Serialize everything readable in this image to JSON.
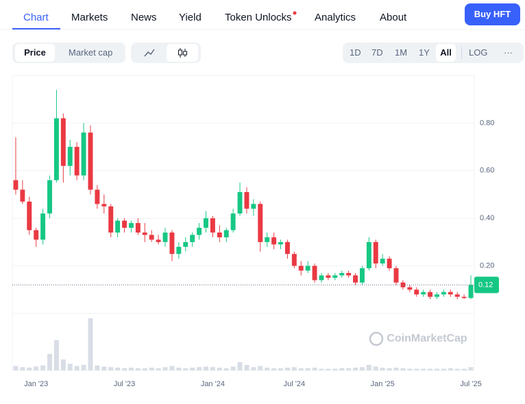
{
  "nav": {
    "tabs": [
      "Chart",
      "Markets",
      "News",
      "Yield",
      "Token Unlocks",
      "Analytics",
      "About"
    ],
    "button": "Buy HFT"
  },
  "controls": {
    "metric": [
      "Price",
      "Market cap"
    ],
    "ranges": [
      "1D",
      "7D",
      "1M",
      "1Y",
      "All",
      "LOG",
      "···"
    ]
  },
  "chart_data": {
    "type": "candlestick",
    "watermark": "CoinMarketCap",
    "categories": [
      null,
      null,
      null,
      "Jan '23",
      null,
      null,
      null,
      null,
      null,
      null,
      null,
      null,
      null,
      null,
      null,
      null,
      "Jul '23",
      null,
      null,
      null,
      null,
      null,
      null,
      null,
      null,
      null,
      null,
      null,
      null,
      "Jan '24",
      null,
      null,
      null,
      null,
      null,
      null,
      null,
      null,
      null,
      null,
      null,
      "Jul '24",
      null,
      null,
      null,
      null,
      null,
      null,
      null,
      null,
      null,
      null,
      null,
      null,
      "Jan '25",
      null,
      null,
      null,
      null,
      null,
      null,
      null,
      null,
      null,
      null,
      null,
      null,
      "Jul '25"
    ],
    "open": [
      0.56,
      0.52,
      0.47,
      0.35,
      0.31,
      0.42,
      0.56,
      0.82,
      0.62,
      0.7,
      0.58,
      0.76,
      0.52,
      0.46,
      0.45,
      0.34,
      0.39,
      0.36,
      0.38,
      0.34,
      0.33,
      0.31,
      0.3,
      0.34,
      0.25,
      0.28,
      0.3,
      0.33,
      0.36,
      0.4,
      0.34,
      0.32,
      0.35,
      0.42,
      0.51,
      0.44,
      0.46,
      0.3,
      0.32,
      0.29,
      0.3,
      0.25,
      0.2,
      0.18,
      0.2,
      0.14,
      0.16,
      0.15,
      0.16,
      0.17,
      0.16,
      0.13,
      0.19,
      0.3,
      0.21,
      0.23,
      0.19,
      0.13,
      0.11,
      0.1,
      0.08,
      0.09,
      0.07,
      0.08,
      0.09,
      0.08,
      0.07,
      0.065
    ],
    "high": [
      0.74,
      0.56,
      0.49,
      0.36,
      0.44,
      0.58,
      0.94,
      0.84,
      0.73,
      0.72,
      0.8,
      0.79,
      0.54,
      0.5,
      0.46,
      0.4,
      0.4,
      0.39,
      0.4,
      0.38,
      0.35,
      0.33,
      0.36,
      0.35,
      0.3,
      0.32,
      0.34,
      0.38,
      0.43,
      0.41,
      0.37,
      0.36,
      0.44,
      0.55,
      0.53,
      0.48,
      0.47,
      0.34,
      0.34,
      0.31,
      0.31,
      0.26,
      0.22,
      0.22,
      0.21,
      0.17,
      0.17,
      0.17,
      0.18,
      0.18,
      0.17,
      0.2,
      0.32,
      0.31,
      0.25,
      0.24,
      0.2,
      0.14,
      0.12,
      0.11,
      0.1,
      0.1,
      0.09,
      0.1,
      0.1,
      0.09,
      0.08,
      0.16
    ],
    "low": [
      0.5,
      0.46,
      0.33,
      0.28,
      0.29,
      0.4,
      0.55,
      0.55,
      0.58,
      0.56,
      0.56,
      0.5,
      0.44,
      0.42,
      0.32,
      0.32,
      0.34,
      0.34,
      0.33,
      0.3,
      0.3,
      0.29,
      0.28,
      0.22,
      0.23,
      0.26,
      0.28,
      0.31,
      0.34,
      0.32,
      0.3,
      0.3,
      0.34,
      0.41,
      0.42,
      0.41,
      0.26,
      0.28,
      0.27,
      0.27,
      0.23,
      0.19,
      0.16,
      0.17,
      0.13,
      0.13,
      0.14,
      0.14,
      0.15,
      0.15,
      0.12,
      0.12,
      0.18,
      0.19,
      0.2,
      0.18,
      0.12,
      0.1,
      0.09,
      0.07,
      0.07,
      0.06,
      0.06,
      0.07,
      0.07,
      0.06,
      0.06,
      0.06
    ],
    "close": [
      0.52,
      0.47,
      0.35,
      0.31,
      0.42,
      0.56,
      0.82,
      0.62,
      0.7,
      0.58,
      0.76,
      0.52,
      0.46,
      0.45,
      0.34,
      0.39,
      0.36,
      0.38,
      0.34,
      0.33,
      0.31,
      0.3,
      0.34,
      0.25,
      0.28,
      0.3,
      0.33,
      0.36,
      0.4,
      0.34,
      0.32,
      0.35,
      0.42,
      0.51,
      0.44,
      0.46,
      0.3,
      0.32,
      0.29,
      0.3,
      0.25,
      0.2,
      0.18,
      0.2,
      0.14,
      0.16,
      0.15,
      0.16,
      0.17,
      0.16,
      0.13,
      0.19,
      0.3,
      0.21,
      0.23,
      0.19,
      0.13,
      0.11,
      0.1,
      0.08,
      0.09,
      0.07,
      0.08,
      0.09,
      0.08,
      0.07,
      0.065,
      0.12
    ],
    "volume": [
      8,
      6,
      5,
      7,
      9,
      30,
      55,
      20,
      12,
      8,
      10,
      95,
      9,
      7,
      6,
      5,
      4,
      5,
      4,
      4,
      5,
      4,
      6,
      8,
      5,
      4,
      5,
      6,
      7,
      6,
      5,
      4,
      7,
      15,
      10,
      6,
      8,
      5,
      4,
      4,
      5,
      6,
      4,
      4,
      5,
      3,
      3,
      3,
      4,
      4,
      5,
      6,
      10,
      7,
      5,
      4,
      5,
      4,
      3,
      3,
      3,
      3,
      3,
      3,
      4,
      3,
      3,
      6
    ],
    "volume_ylim": [
      0,
      100
    ],
    "ylim": [
      0,
      1.0
    ],
    "yticks": [
      {
        "value": 0.2,
        "label": "0.20"
      },
      {
        "value": 0.4,
        "label": "0.40"
      },
      {
        "value": 0.6,
        "label": "0.60"
      },
      {
        "value": 0.8,
        "label": "0.80"
      }
    ],
    "last_price": 0.12,
    "up_color": "#16c784",
    "down_color": "#ea3943",
    "volume_color": "#d8dde6",
    "grid": true
  }
}
